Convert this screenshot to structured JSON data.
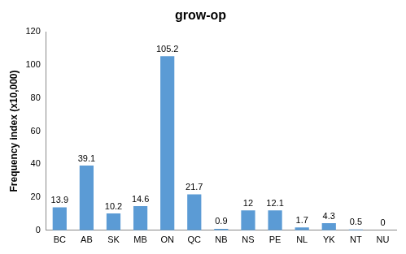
{
  "chart_data": {
    "type": "bar",
    "title": "grow-op",
    "ylabel": "Frequency index (x10,000)",
    "categories": [
      "BC",
      "AB",
      "SK",
      "MB",
      "ON",
      "QC",
      "NB",
      "NS",
      "PE",
      "NL",
      "YK",
      "NT",
      "NU"
    ],
    "values": [
      13.9,
      39.1,
      10.2,
      14.6,
      105.2,
      21.7,
      0.9,
      12,
      12.1,
      1.7,
      4.3,
      0.5,
      0
    ],
    "color": "#5b9bd5",
    "ylim": [
      0,
      120
    ],
    "yticks": [
      0,
      20,
      40,
      60,
      80,
      100,
      120
    ],
    "grid": false,
    "data_labels": true
  }
}
